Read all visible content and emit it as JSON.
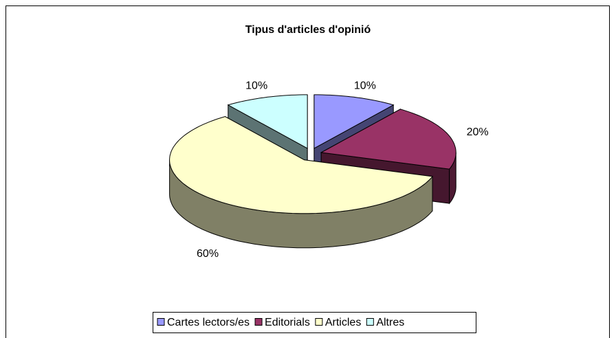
{
  "chart_data": {
    "type": "pie",
    "title": "Tipus d'articles d'opinió",
    "categories": [
      "Cartes lectors/es",
      "Editorials",
      "Articles",
      "Altres"
    ],
    "values": [
      10,
      20,
      60,
      10
    ],
    "value_labels": [
      "10%",
      "20%",
      "60%",
      "10%"
    ],
    "colors": [
      "#9999ff",
      "#993366",
      "#ffffcc",
      "#ccffff"
    ],
    "legend": "bottom"
  }
}
